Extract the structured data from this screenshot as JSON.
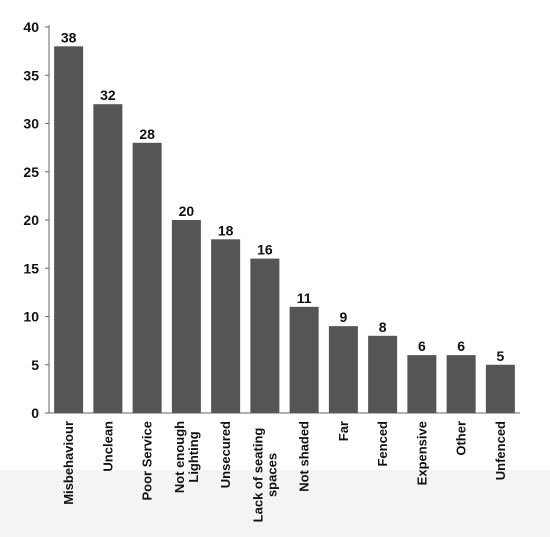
{
  "chart_data": {
    "type": "bar",
    "title": "",
    "xlabel": "",
    "ylabel": "",
    "ylim": [
      0,
      40
    ],
    "yticks": [
      0,
      5,
      10,
      15,
      20,
      25,
      30,
      35,
      40
    ],
    "grid": false,
    "legend": "none",
    "bar_color": "#555555",
    "categories": [
      [
        "Misbehaviour"
      ],
      [
        "Unclean"
      ],
      [
        "Poor Service"
      ],
      [
        "Not enough",
        "Lighting"
      ],
      [
        "Unsecured"
      ],
      [
        "Lack of seating",
        "spaces"
      ],
      [
        "Not shaded"
      ],
      [
        "Far"
      ],
      [
        "Fenced"
      ],
      [
        "Expensive"
      ],
      [
        "Other"
      ],
      [
        "Unfenced"
      ]
    ],
    "values": [
      38,
      32,
      28,
      20,
      18,
      16,
      11,
      9,
      8,
      6,
      6,
      5
    ]
  }
}
